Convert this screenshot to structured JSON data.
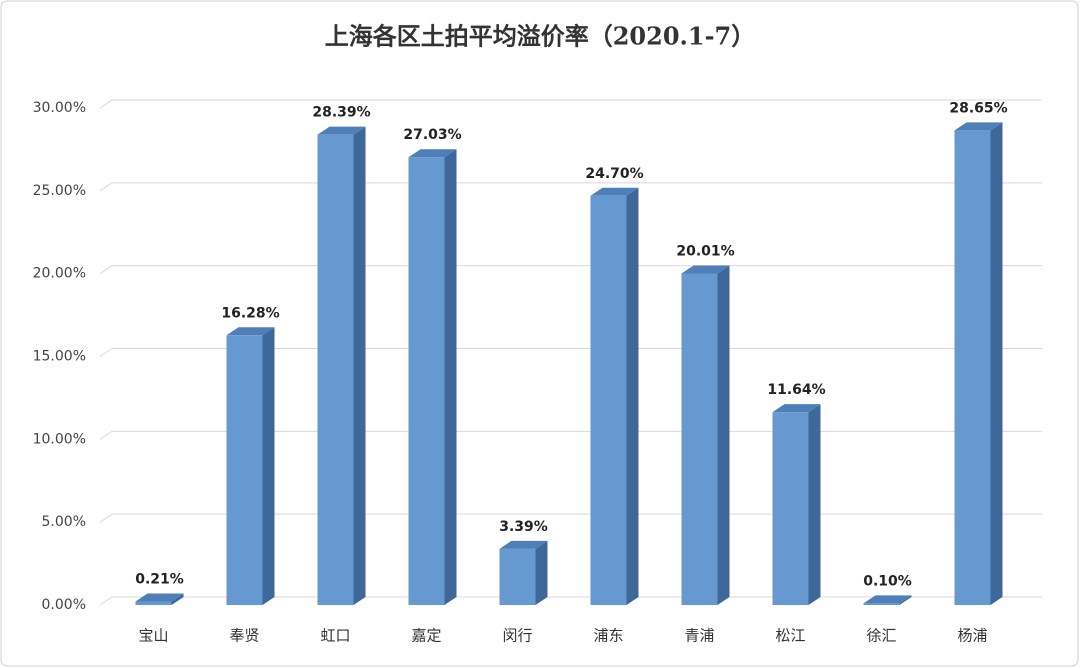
{
  "chart_data": {
    "type": "bar",
    "title": "上海各区土拍平均溢价率（2020.1-7）",
    "categories": [
      "宝山",
      "奉贤",
      "虹口",
      "嘉定",
      "闵行",
      "浦东",
      "青浦",
      "松江",
      "徐汇",
      "杨浦"
    ],
    "values": [
      0.21,
      16.28,
      28.39,
      27.03,
      3.39,
      24.7,
      20.01,
      11.64,
      0.1,
      28.65
    ],
    "value_labels": [
      "0.21%",
      "16.28%",
      "28.39%",
      "27.03%",
      "3.39%",
      "24.70%",
      "20.01%",
      "11.64%",
      "0.10%",
      "28.65%"
    ],
    "color": "#6699d0",
    "ylim": [
      0,
      30
    ],
    "yticks": [
      {
        "value": 0,
        "label": "0.00%"
      },
      {
        "value": 5,
        "label": "5.00%"
      },
      {
        "value": 10,
        "label": "10.00%"
      },
      {
        "value": 15,
        "label": "15.00%"
      },
      {
        "value": 20,
        "label": "20.00%"
      },
      {
        "value": 25,
        "label": "25.00%"
      },
      {
        "value": 30,
        "label": "30.00%"
      }
    ],
    "grid": true
  }
}
